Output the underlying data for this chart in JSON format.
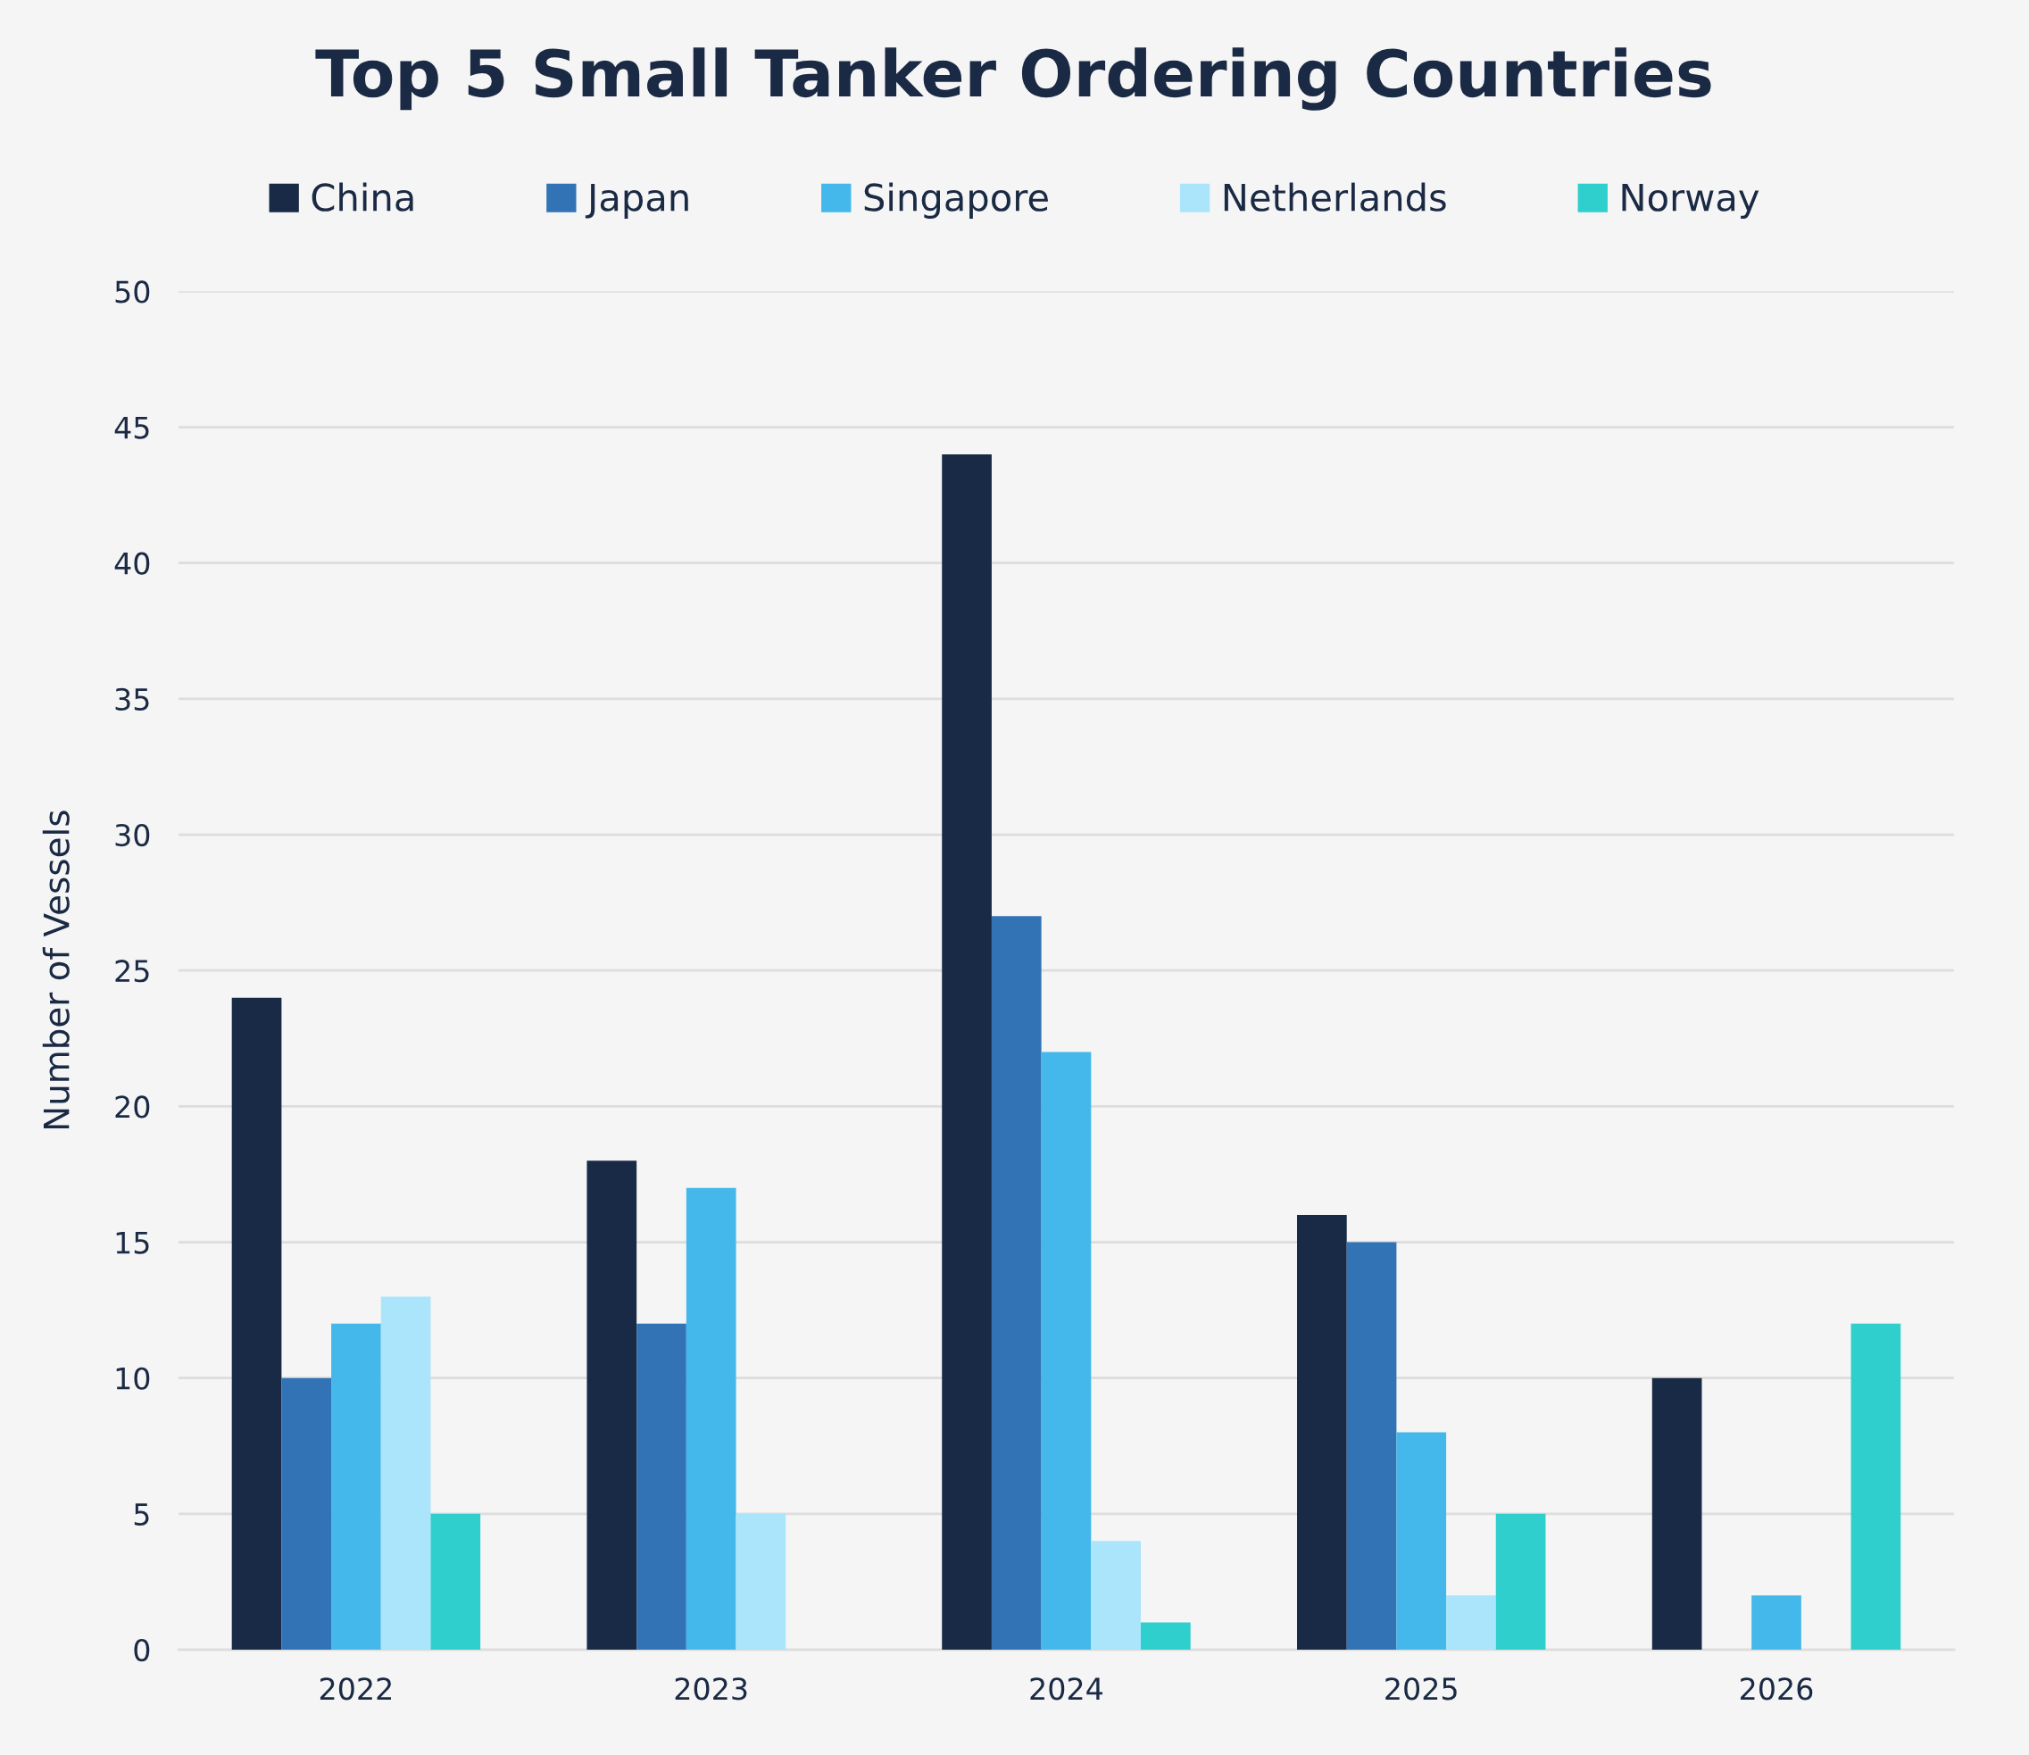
{
  "chart_data": {
    "type": "bar",
    "title": "Top 5 Small Tanker Ordering Countries",
    "ylabel": "Number of Vessels",
    "categories": [
      "2022",
      "2023",
      "2024",
      "2025",
      "2026"
    ],
    "series": [
      {
        "name": "China",
        "color": "#182a45",
        "values": [
          24,
          18,
          44,
          16,
          10
        ]
      },
      {
        "name": "Japan",
        "color": "#3273b5",
        "values": [
          10,
          12,
          27,
          15,
          0
        ]
      },
      {
        "name": "Singapore",
        "color": "#44b8ea",
        "values": [
          12,
          17,
          22,
          8,
          2
        ]
      },
      {
        "name": "Netherlands",
        "color": "#abe5fb",
        "values": [
          13,
          5,
          4,
          2,
          0
        ]
      },
      {
        "name": "Norway",
        "color": "#2ecfcd",
        "values": [
          5,
          0,
          1,
          5,
          12
        ]
      }
    ],
    "ylim": [
      0,
      50
    ],
    "yticks": [
      0,
      5,
      10,
      15,
      20,
      25,
      30,
      35,
      40,
      45,
      50
    ],
    "grid": "y",
    "legend": "top"
  }
}
